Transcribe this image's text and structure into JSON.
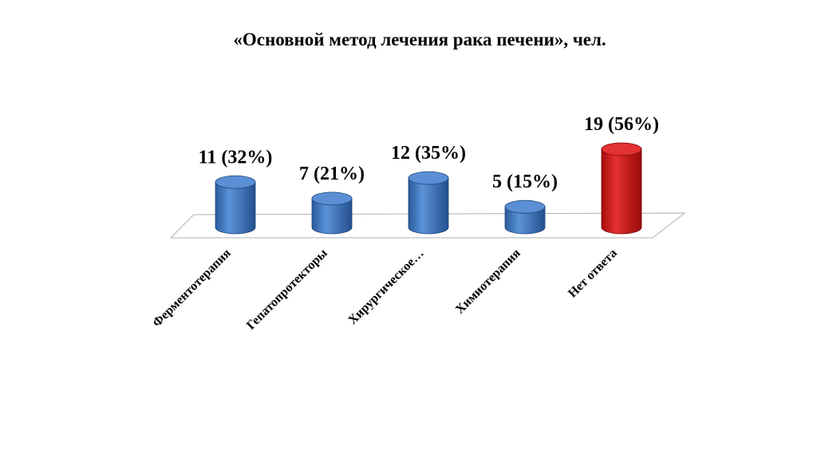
{
  "chart_data": {
    "type": "bar",
    "title": "«Основной метод лечения рака печени», чел.",
    "categories": [
      "Ферментотерапия",
      "Гепатопротекторы",
      "Хирургическое…",
      "Химиотерапия",
      "Нет ответа"
    ],
    "values": [
      11,
      7,
      12,
      5,
      19
    ],
    "data_labels": [
      "11 (32%)",
      "7 (21%)",
      "12 (35%)",
      "5 (15%)",
      "19 (56%)"
    ],
    "colors": [
      "#3b73c0",
      "#3b73c0",
      "#3b73c0",
      "#3b73c0",
      "#cc1111"
    ],
    "ylim": [
      0,
      19
    ],
    "grid": false,
    "legend": "none"
  }
}
